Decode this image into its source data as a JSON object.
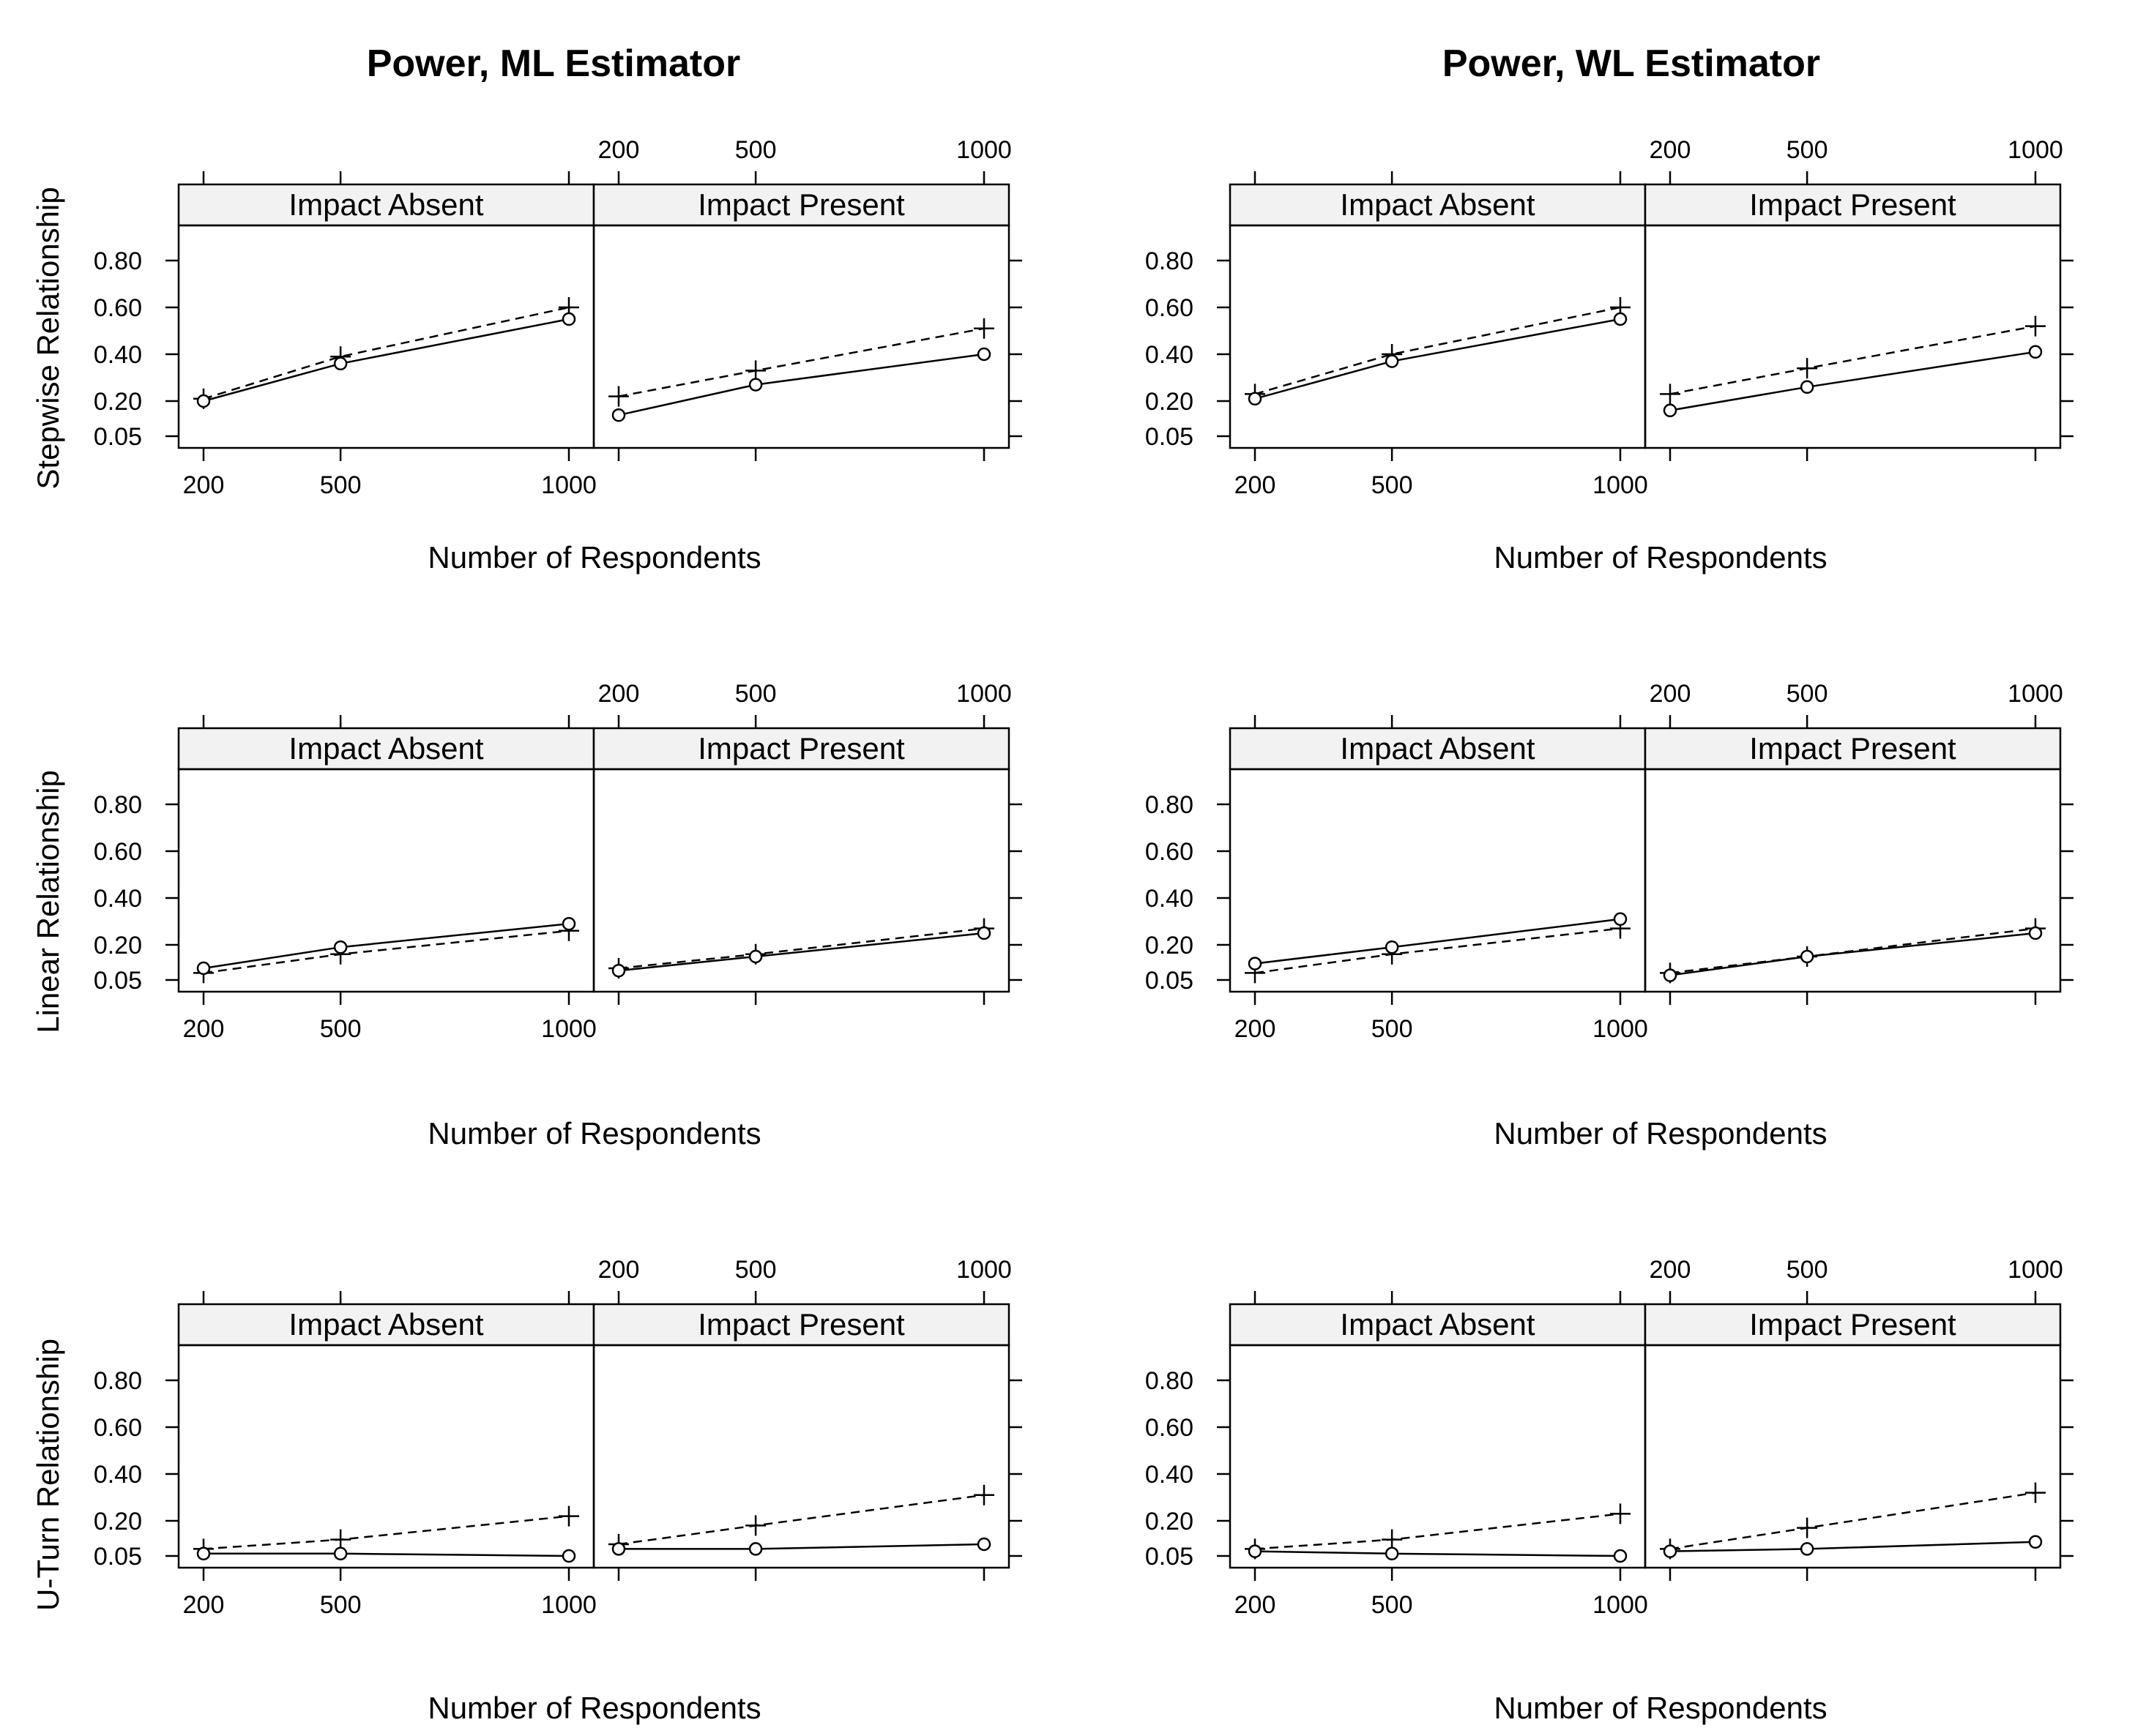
{
  "figure": {
    "columns": [
      "Power, ML Estimator",
      "Power, WL Estimator"
    ],
    "rows": [
      "Stepwise Relationship",
      "Linear Relationship",
      "U-Turn Relationship"
    ],
    "panels": [
      "Impact Absent",
      "Impact Present"
    ],
    "xlabel": "Number of Respondents"
  },
  "chart_data": {
    "type": "line",
    "layout": "trellis grid: 3 rows x 2 columns, each cell has two side-by-side panels",
    "x": [
      200,
      500,
      1000
    ],
    "x_ticks": [
      "200",
      "500",
      "1000"
    ],
    "y_ticks": [
      "0.05",
      "0.20",
      "0.40",
      "0.60",
      "0.80"
    ],
    "ylim": [
      0.0,
      0.95
    ],
    "series_styles": [
      {
        "marker": "circle",
        "line": "solid"
      },
      {
        "marker": "plus",
        "line": "dashed"
      }
    ],
    "grid": false,
    "cells": [
      {
        "column": "Power, ML Estimator",
        "row": "Stepwise Relationship",
        "panels": [
          {
            "strip": "Impact Absent",
            "solid": [
              0.2,
              0.36,
              0.55
            ],
            "dashed": [
              0.21,
              0.39,
              0.6
            ]
          },
          {
            "strip": "Impact Present",
            "solid": [
              0.14,
              0.27,
              0.4
            ],
            "dashed": [
              0.22,
              0.33,
              0.51
            ]
          }
        ]
      },
      {
        "column": "Power, WL Estimator",
        "row": "Stepwise Relationship",
        "panels": [
          {
            "strip": "Impact Absent",
            "solid": [
              0.21,
              0.37,
              0.55
            ],
            "dashed": [
              0.23,
              0.4,
              0.6
            ]
          },
          {
            "strip": "Impact Present",
            "solid": [
              0.16,
              0.26,
              0.41
            ],
            "dashed": [
              0.23,
              0.34,
              0.52
            ]
          }
        ]
      },
      {
        "column": "Power, ML Estimator",
        "row": "Linear Relationship",
        "panels": [
          {
            "strip": "Impact Absent",
            "solid": [
              0.1,
              0.19,
              0.29
            ],
            "dashed": [
              0.08,
              0.16,
              0.26
            ]
          },
          {
            "strip": "Impact Present",
            "solid": [
              0.09,
              0.15,
              0.25
            ],
            "dashed": [
              0.1,
              0.16,
              0.27
            ]
          }
        ]
      },
      {
        "column": "Power, WL Estimator",
        "row": "Linear Relationship",
        "panels": [
          {
            "strip": "Impact Absent",
            "solid": [
              0.12,
              0.19,
              0.31
            ],
            "dashed": [
              0.08,
              0.16,
              0.27
            ]
          },
          {
            "strip": "Impact Present",
            "solid": [
              0.07,
              0.15,
              0.25
            ],
            "dashed": [
              0.08,
              0.15,
              0.27
            ]
          }
        ]
      },
      {
        "column": "Power, ML Estimator",
        "row": "U-Turn Relationship",
        "panels": [
          {
            "strip": "Impact Absent",
            "solid": [
              0.06,
              0.06,
              0.05
            ],
            "dashed": [
              0.08,
              0.12,
              0.22
            ]
          },
          {
            "strip": "Impact Present",
            "solid": [
              0.08,
              0.08,
              0.1
            ],
            "dashed": [
              0.1,
              0.18,
              0.31
            ]
          }
        ]
      },
      {
        "column": "Power, WL Estimator",
        "row": "U-Turn Relationship",
        "panels": [
          {
            "strip": "Impact Absent",
            "solid": [
              0.07,
              0.06,
              0.05
            ],
            "dashed": [
              0.08,
              0.12,
              0.23
            ]
          },
          {
            "strip": "Impact Present",
            "solid": [
              0.07,
              0.08,
              0.11
            ],
            "dashed": [
              0.08,
              0.17,
              0.32
            ]
          }
        ]
      }
    ]
  }
}
